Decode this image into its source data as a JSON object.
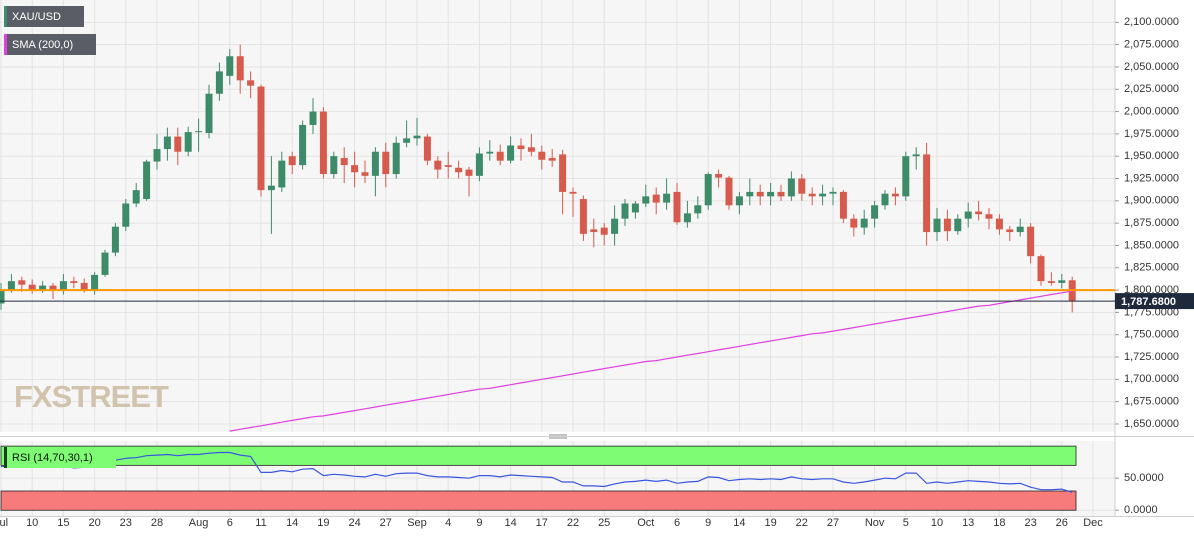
{
  "chart_data": [
    {
      "type": "candlestick",
      "watermark": "FXSTREET",
      "categories": [
        "Jul",
        null,
        null,
        "10",
        null,
        null,
        "15",
        null,
        null,
        "20",
        null,
        null,
        "23",
        null,
        null,
        "28",
        null,
        null,
        null,
        "Aug",
        null,
        null,
        "6",
        null,
        null,
        "11",
        null,
        null,
        "14",
        null,
        null,
        "19",
        null,
        null,
        "24",
        null,
        null,
        "27",
        null,
        null,
        "Sep",
        null,
        null,
        "4",
        null,
        null,
        "9",
        null,
        null,
        "14",
        null,
        null,
        "17",
        null,
        null,
        "22",
        null,
        null,
        "25",
        null,
        null,
        null,
        "Oct",
        null,
        null,
        "6",
        null,
        null,
        "9",
        null,
        null,
        "14",
        null,
        null,
        "19",
        null,
        null,
        "22",
        null,
        null,
        "27",
        null,
        null,
        null,
        "Nov",
        null,
        null,
        "5",
        null,
        null,
        "10",
        null,
        null,
        "13",
        null,
        null,
        "18",
        null,
        null,
        "23",
        null,
        null,
        "26",
        null,
        null,
        "Dec"
      ],
      "series": [
        {
          "name": "XAU/USD",
          "up_color": "#3d8b68",
          "down_color": "#d65b4c",
          "open": [
            1785,
            1800,
            1811,
            1806,
            1800,
            1805,
            1799,
            1810,
            1808,
            1800,
            1817,
            1842,
            1871,
            1897,
            1902,
            1944,
            1958,
            1972,
            1955,
            1977,
            1976,
            2020,
            2040,
            2062,
            2035,
            2028,
            1912,
            1915,
            1950,
            1940,
            1985,
            2000,
            1930,
            1948,
            1940,
            1932,
            1928,
            1955,
            1930,
            1965,
            1970,
            1972,
            1945,
            1940,
            1937,
            1935,
            1928,
            1953,
            1955,
            1945,
            1962,
            1960,
            1955,
            1948,
            1952,
            1910,
            1902,
            1868,
            1870,
            1863,
            1880,
            1887,
            1897,
            1907,
            1898,
            1910,
            1876,
            1886,
            1895,
            1930,
            1926,
            1895,
            1905,
            1910,
            1905,
            1910,
            1905,
            1925,
            1908,
            1905,
            1908,
            1910,
            1880,
            1870,
            1880,
            1895,
            1908,
            1905,
            1950,
            1952,
            1865,
            1880,
            1866,
            1880,
            1888,
            1885,
            1880,
            1868,
            1865,
            1871,
            1838,
            1810,
            1808,
            1811,
            null,
            null
          ],
          "high": [
            1808,
            1818,
            1815,
            1812,
            1810,
            1808,
            1818,
            1815,
            1813,
            1820,
            1845,
            1875,
            1902,
            1920,
            1946,
            1975,
            1982,
            1982,
            1983,
            1992,
            2030,
            2055,
            2070,
            2075,
            2045,
            2030,
            1950,
            1955,
            1955,
            1990,
            2015,
            2005,
            1955,
            1960,
            1955,
            1945,
            1960,
            1965,
            1972,
            1990,
            1993,
            1975,
            1950,
            1955,
            1945,
            1938,
            1960,
            1968,
            1963,
            1972,
            1970,
            1975,
            1962,
            1958,
            1957,
            1915,
            1906,
            1880,
            1875,
            1895,
            1902,
            1900,
            1918,
            1915,
            1925,
            1920,
            1900,
            1905,
            1932,
            1935,
            1928,
            1910,
            1925,
            1918,
            1920,
            1918,
            1933,
            1930,
            1915,
            1918,
            1915,
            1912,
            1885,
            1890,
            1900,
            1912,
            1915,
            1955,
            1960,
            1965,
            1892,
            1890,
            1885,
            1898,
            1900,
            1892,
            1885,
            1872,
            1880,
            1875,
            1840,
            1820,
            1818,
            1815,
            null,
            null
          ],
          "low": [
            1778,
            1797,
            1798,
            1796,
            1797,
            1790,
            1795,
            1802,
            1797,
            1795,
            1815,
            1838,
            1866,
            1893,
            1900,
            1935,
            1945,
            1940,
            1950,
            1955,
            1970,
            2012,
            2030,
            2020,
            2015,
            1905,
            1863,
            1910,
            1930,
            1935,
            1975,
            1925,
            1925,
            1920,
            1915,
            1920,
            1905,
            1915,
            1925,
            1960,
            1962,
            1940,
            1925,
            1925,
            1925,
            1905,
            1922,
            1945,
            1940,
            1942,
            1945,
            1950,
            1935,
            1938,
            1885,
            1882,
            1855,
            1848,
            1850,
            1850,
            1872,
            1880,
            1893,
            1885,
            1890,
            1873,
            1870,
            1880,
            1890,
            1915,
            1890,
            1885,
            1895,
            1895,
            1895,
            1900,
            1900,
            1900,
            1895,
            1895,
            1895,
            1875,
            1860,
            1862,
            1870,
            1890,
            1895,
            1900,
            1935,
            1850,
            1855,
            1855,
            1862,
            1870,
            1878,
            1868,
            1862,
            1855,
            1860,
            1830,
            1805,
            1805,
            1802,
            1775,
            null,
            null
          ],
          "close": [
            1800,
            1810,
            1806,
            1800,
            1805,
            1799,
            1810,
            1808,
            1800,
            1817,
            1842,
            1871,
            1897,
            1912,
            1944,
            1958,
            1972,
            1955,
            1977,
            1978,
            2020,
            2045,
            2062,
            2035,
            2029,
            1912,
            1917,
            1945,
            1940,
            1985,
            2000,
            1930,
            1950,
            1940,
            1932,
            1928,
            1955,
            1930,
            1965,
            1970,
            1973,
            1945,
            1935,
            1938,
            1932,
            1928,
            1953,
            1955,
            1945,
            1962,
            1958,
            1955,
            1946,
            1945,
            1910,
            1908,
            1863,
            1865,
            1862,
            1880,
            1897,
            1897,
            1905,
            1898,
            1908,
            1876,
            1886,
            1895,
            1930,
            1926,
            1895,
            1905,
            1910,
            1905,
            1910,
            1905,
            1925,
            1908,
            1905,
            1908,
            1910,
            1880,
            1870,
            1880,
            1895,
            1908,
            1905,
            1950,
            1952,
            1865,
            1880,
            1866,
            1880,
            1888,
            1885,
            1880,
            1868,
            1865,
            1871,
            1838,
            1810,
            1808,
            1811,
            1788,
            null,
            null
          ]
        },
        {
          "name": "SMA (200,0)",
          "color": "#e040e0",
          "values": [
            null,
            null,
            null,
            null,
            null,
            null,
            null,
            null,
            null,
            null,
            null,
            null,
            null,
            null,
            null,
            null,
            null,
            null,
            null,
            null,
            null,
            null,
            1642,
            1644,
            1646,
            1648,
            1650,
            1652,
            1654,
            1656,
            1658,
            1659,
            1661,
            1663,
            1665,
            1667,
            1669,
            1671,
            1673,
            1675,
            1677,
            1679,
            1681,
            1683,
            1685,
            1687,
            1689,
            1690,
            1692,
            1694,
            1696,
            1698,
            1700,
            1702,
            1704,
            1706,
            1708,
            1710,
            1712,
            1714,
            1716,
            1718,
            1720,
            1721,
            1723,
            1725,
            1727,
            1729,
            1731,
            1733,
            1735,
            1737,
            1739,
            1741,
            1743,
            1745,
            1747,
            1749,
            1751,
            1752,
            1754,
            1756,
            1758,
            1760,
            1762,
            1764,
            1766,
            1768,
            1770,
            1772,
            1774,
            1776,
            1778,
            1780,
            1782,
            1783,
            1785,
            1787,
            1789,
            1791,
            1793,
            1795,
            1797,
            1799,
            null,
            null
          ]
        }
      ],
      "reference_line": {
        "value": 1800,
        "color": "#ff9800"
      },
      "last_price": {
        "value": 1787.68,
        "label": "1,787.6800",
        "color": "#1e2a3c"
      },
      "ylim": [
        1641,
        2125
      ],
      "yticks": [
        {
          "value": 1650,
          "label": "1,650.0000"
        },
        {
          "value": 1675,
          "label": "1,675.0000"
        },
        {
          "value": 1700,
          "label": "1,700.0000"
        },
        {
          "value": 1725,
          "label": "1,725.0000"
        },
        {
          "value": 1750,
          "label": "1,750.0000"
        },
        {
          "value": 1775,
          "label": "1,775.0000"
        },
        {
          "value": 1800,
          "label": "1,800.0000"
        },
        {
          "value": 1825,
          "label": "1,825.0000"
        },
        {
          "value": 1850,
          "label": "1,850.0000"
        },
        {
          "value": 1875,
          "label": "1,875.0000"
        },
        {
          "value": 1900,
          "label": "1,900.0000"
        },
        {
          "value": 1925,
          "label": "1,925.0000"
        },
        {
          "value": 1950,
          "label": "1,950.0000"
        },
        {
          "value": 1975,
          "label": "1,975.0000"
        },
        {
          "value": 2000,
          "label": "2,000.0000"
        },
        {
          "value": 2025,
          "label": "2,025.0000"
        },
        {
          "value": 2050,
          "label": "2,050.0000"
        },
        {
          "value": 2075,
          "label": "2,075.0000"
        },
        {
          "value": 2100,
          "label": "2,100.0000"
        }
      ],
      "grid": true
    },
    {
      "type": "line",
      "series": [
        {
          "name": "RSI (14,70,30,1)",
          "color": "#3a55e0",
          "values": [
            68,
            70,
            72,
            70,
            71,
            68,
            69,
            66,
            67,
            70,
            74,
            78,
            81,
            82,
            85,
            86,
            87,
            85,
            87,
            87,
            89,
            90,
            90,
            86,
            84,
            59,
            59,
            62,
            60,
            64,
            65,
            54,
            56,
            55,
            53,
            52,
            56,
            53,
            57,
            58,
            58,
            54,
            52,
            52,
            51,
            50,
            54,
            54,
            52,
            55,
            54,
            53,
            52,
            51,
            44,
            44,
            38,
            38,
            37,
            41,
            44,
            45,
            47,
            45,
            47,
            42,
            44,
            45,
            52,
            51,
            46,
            48,
            49,
            48,
            49,
            48,
            52,
            49,
            48,
            49,
            49,
            44,
            42,
            44,
            47,
            50,
            49,
            58,
            58,
            42,
            44,
            42,
            44,
            46,
            45,
            44,
            42,
            41,
            42,
            36,
            32,
            32,
            33,
            28,
            null,
            null
          ]
        }
      ],
      "bands": [
        {
          "from": 70,
          "to": 100,
          "color": "#7dfc74"
        },
        {
          "from": 0,
          "to": 30,
          "color": "#f77b7b"
        }
      ],
      "ylim": [
        -9,
        108
      ],
      "yticks": [
        {
          "value": 0,
          "label": "0.0000"
        },
        {
          "value": 50,
          "label": "50.0000"
        }
      ],
      "grid": true
    }
  ]
}
